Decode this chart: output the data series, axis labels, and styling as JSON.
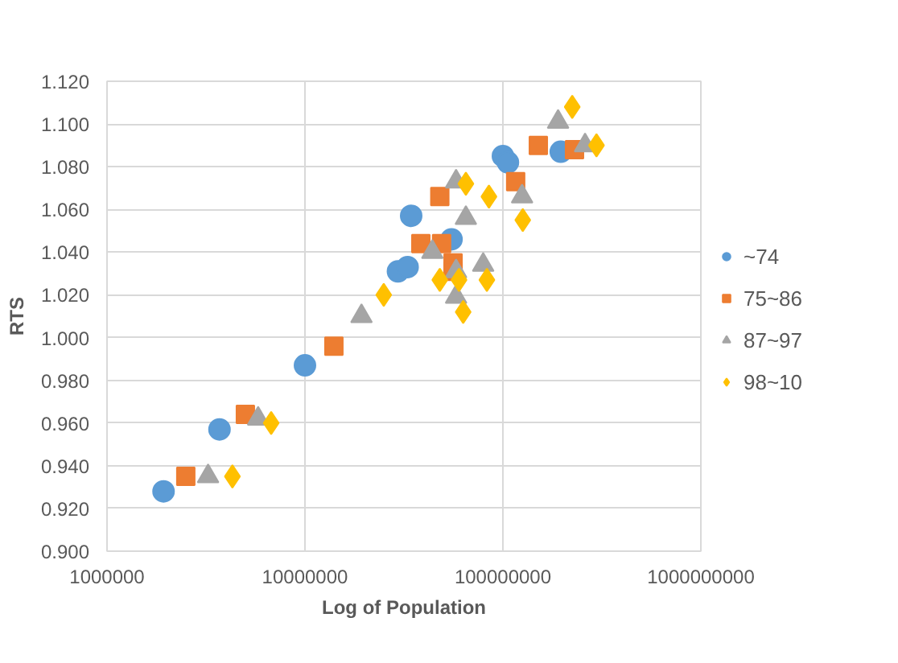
{
  "chart_data": {
    "type": "scatter",
    "xlabel": "Log of Population",
    "ylabel": "RTS",
    "log": "x",
    "grid": true,
    "legend": "right",
    "xlim": [
      1000000,
      1000000000
    ],
    "xticks": [
      1000000,
      10000000,
      100000000,
      1000000000
    ],
    "ylim": [
      0.9,
      1.12
    ],
    "yticks": [
      {
        "value": 0.9,
        "label": "0.900"
      },
      {
        "value": 0.92,
        "label": "0.920"
      },
      {
        "value": 0.94,
        "label": "0.940"
      },
      {
        "value": 0.96,
        "label": "0.960"
      },
      {
        "value": 0.98,
        "label": "0.980"
      },
      {
        "value": 1.0,
        "label": "1.000"
      },
      {
        "value": 1.02,
        "label": "1.020"
      },
      {
        "value": 1.04,
        "label": "1.040"
      },
      {
        "value": 1.06,
        "label": "1.060"
      },
      {
        "value": 1.08,
        "label": "1.080"
      },
      {
        "value": 1.1,
        "label": "1.100"
      },
      {
        "value": 1.12,
        "label": "1.120"
      }
    ],
    "series": [
      {
        "name": "~74",
        "color": "#5b9bd5",
        "marker": "circle",
        "x": [
          1930000,
          3700000,
          10000000,
          34400000,
          29500000,
          33000000,
          55000000,
          100000000,
          106000000,
          196000000
        ],
        "values": [
          0.928,
          0.957,
          0.987,
          1.057,
          1.031,
          1.033,
          1.046,
          1.085,
          1.082,
          1.087
        ]
      },
      {
        "name": "75~86",
        "color": "#ed7d31",
        "marker": "square",
        "x": [
          2500000,
          5000000,
          14000000,
          48000000,
          38500000,
          49000000,
          56000000,
          56000000,
          116000000,
          151000000,
          230000000
        ],
        "values": [
          0.935,
          0.964,
          0.996,
          1.066,
          1.044,
          1.044,
          1.035,
          1.031,
          1.073,
          1.09,
          1.088
        ]
      },
      {
        "name": "87~97",
        "color": "#a5a5a5",
        "marker": "triangle",
        "x": [
          3240000,
          5800000,
          19300000,
          44000000,
          58000000,
          65000000,
          79500000,
          58000000,
          58000000,
          125000000,
          190000000,
          260000000
        ],
        "values": [
          0.935,
          0.962,
          1.01,
          1.04,
          1.073,
          1.056,
          1.034,
          1.031,
          1.019,
          1.066,
          1.101,
          1.09
        ]
      },
      {
        "name": "98~10",
        "color": "#ffc000",
        "marker": "diamond",
        "x": [
          4300000,
          6750000,
          25000000,
          48000000,
          60000000,
          63000000,
          65000000,
          85000000,
          83000000,
          126000000,
          224000000,
          297000000
        ],
        "values": [
          0.935,
          0.96,
          1.02,
          1.027,
          1.027,
          1.012,
          1.072,
          1.066,
          1.027,
          1.055,
          1.108,
          1.09
        ]
      }
    ]
  }
}
